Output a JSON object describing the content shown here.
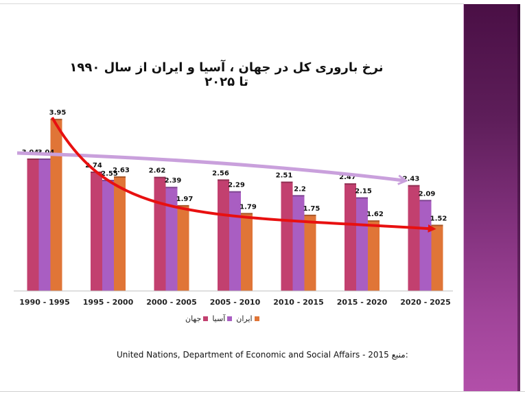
{
  "slide": {
    "source_prefix": "منبع:",
    "source_text": "United Nations, Department of Economic and Social Affairs - 2015"
  },
  "colors": {
    "world": "#c2406f",
    "asia": "#a95ec2",
    "iran": "#e07537",
    "trend_asia": "#c9a0dc",
    "trend_iran": "#e81010"
  },
  "chart_data": {
    "type": "bar",
    "title": "نرخ باروری کل در جهان ، آسیا و ایران از سال ۱۹۹۰ تا ۲۰۲۵",
    "xlabel": "",
    "ylabel": "",
    "ylim": [
      0,
      4.2
    ],
    "grid": false,
    "legend_position": "bottom",
    "categories": [
      "1990 - 1995",
      "1995 - 2000",
      "2000 - 2005",
      "2005 - 2010",
      "2010 - 2015",
      "2015 - 2020",
      "2020 - 2025"
    ],
    "series": [
      {
        "name": "جهان",
        "key": "world",
        "values": [
          3.04,
          2.74,
          2.62,
          2.56,
          2.51,
          2.47,
          2.43
        ]
      },
      {
        "name": "آسیا",
        "key": "asia",
        "values": [
          3.04,
          2.55,
          2.39,
          2.29,
          2.2,
          2.15,
          2.09
        ]
      },
      {
        "name": "ایران",
        "key": "iran",
        "values": [
          3.95,
          2.63,
          1.97,
          1.79,
          1.75,
          1.62,
          1.52
        ]
      }
    ],
    "annotations": [
      {
        "type": "trend-arrow",
        "series": "asia",
        "from": "1990 - 1995",
        "to": "2020 - 2025",
        "color_key": "trend_asia"
      },
      {
        "type": "trend-arrow",
        "series": "iran",
        "from": "1990 - 1995",
        "to": "2020 - 2025",
        "color_key": "trend_iran"
      }
    ]
  }
}
